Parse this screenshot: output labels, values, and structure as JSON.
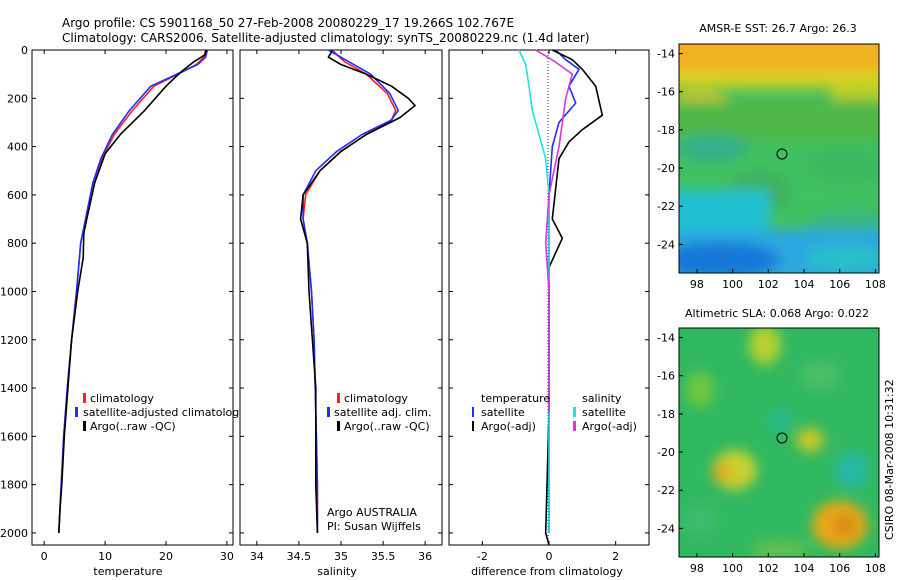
{
  "figure": {
    "title_line1": "Argo profile: CS 5901168_50 27-Feb-2008 20080229_17 19.266S 102.767E",
    "title_line2": "Climatology: CARS2006. Satellite-adjusted climatology: synTS_20080229.nc (1.4d later)",
    "side_note": "CSIRO 08-Mar-2008 10:31:32"
  },
  "colors": {
    "climatology": "#ff2020",
    "satellite": "#1f2fff",
    "argo": "#000000",
    "salinity_satellite": "#20e0e8",
    "salinity_argo": "#e030e0"
  },
  "chart_data": [
    {
      "type": "line",
      "xlabel": "temperature",
      "xticks": [
        0,
        10,
        20,
        30
      ],
      "xlim": [
        -2,
        31
      ],
      "ylim": [
        2050,
        0
      ],
      "yticks": [
        0,
        200,
        400,
        600,
        800,
        1000,
        1200,
        1400,
        1600,
        1800,
        2000
      ],
      "legend": [
        "climatology",
        "satellite-adjusted climatolog",
        "Argo(..raw -QC)"
      ],
      "series": [
        {
          "name": "climatology",
          "color": "#ff2020",
          "x": [
            26.5,
            26.2,
            25.0,
            22.0,
            18.0,
            14.5,
            11.5,
            9.5,
            8.0,
            6.8,
            6.0,
            5.3,
            4.5,
            3.8,
            3.2,
            2.8,
            2.4
          ],
          "y": [
            0,
            30,
            60,
            100,
            150,
            250,
            350,
            450,
            550,
            700,
            800,
            1000,
            1200,
            1400,
            1600,
            1800,
            2000
          ]
        },
        {
          "name": "satellite-adjusted climatolog",
          "color": "#1f2fff",
          "x": [
            26.8,
            26.5,
            25.2,
            21.8,
            17.5,
            14.0,
            11.2,
            9.3,
            8.0,
            6.8,
            6.0,
            5.3,
            4.5,
            3.8,
            3.2,
            2.8,
            2.4
          ],
          "y": [
            0,
            30,
            60,
            100,
            150,
            250,
            350,
            450,
            550,
            700,
            800,
            1000,
            1200,
            1400,
            1600,
            1800,
            2000
          ]
        },
        {
          "name": "Argo(..raw -QC)",
          "color": "#000000",
          "x": [
            26.6,
            26.4,
            24.5,
            22.5,
            20.0,
            16.5,
            12.5,
            10.0,
            8.3,
            7.0,
            6.5,
            6.4,
            5.5,
            4.5,
            3.9,
            3.3,
            2.9,
            2.6,
            2.4
          ],
          "y": [
            0,
            20,
            50,
            90,
            150,
            250,
            350,
            430,
            550,
            700,
            760,
            860,
            1000,
            1200,
            1400,
            1600,
            1800,
            1900,
            2000
          ]
        }
      ]
    },
    {
      "type": "line",
      "xlabel": "salinity",
      "xticks": [
        34,
        34.5,
        35,
        35.5,
        36
      ],
      "xlim": [
        33.8,
        36.2
      ],
      "ylim": [
        2050,
        0
      ],
      "legend": [
        "climatology",
        "satellite adj. clim.",
        "Argo(..raw -QC)"
      ],
      "annotation_lines": [
        "Argo AUSTRALIA",
        "PI: Susan Wijffels"
      ],
      "series": [
        {
          "name": "climatology",
          "color": "#ff2020",
          "x": [
            34.9,
            34.95,
            35.05,
            35.3,
            35.55,
            35.65,
            35.6,
            35.3,
            35.0,
            34.75,
            34.58,
            34.55,
            34.6,
            34.65,
            34.68,
            34.7,
            34.72,
            34.72
          ],
          "y": [
            0,
            20,
            50,
            100,
            180,
            250,
            290,
            350,
            420,
            500,
            600,
            700,
            800,
            1000,
            1200,
            1500,
            1800,
            2000
          ]
        },
        {
          "name": "satellite adj. clim.",
          "color": "#1f2fff",
          "x": [
            34.85,
            34.95,
            35.1,
            35.35,
            35.58,
            35.68,
            35.6,
            35.25,
            34.95,
            34.7,
            34.55,
            34.55,
            34.6,
            34.65,
            34.68,
            34.7,
            34.72,
            34.72
          ],
          "y": [
            0,
            20,
            50,
            100,
            180,
            250,
            290,
            350,
            420,
            500,
            600,
            700,
            800,
            1000,
            1200,
            1500,
            1800,
            2000
          ]
        },
        {
          "name": "Argo(..raw -QC)",
          "color": "#000000",
          "x": [
            34.9,
            34.85,
            35.0,
            35.3,
            35.6,
            35.8,
            35.88,
            35.7,
            35.3,
            35.0,
            34.75,
            34.55,
            34.52,
            34.6,
            34.62,
            34.7,
            34.7,
            34.72
          ],
          "y": [
            0,
            30,
            60,
            100,
            150,
            200,
            230,
            280,
            350,
            420,
            500,
            600,
            700,
            800,
            1000,
            1400,
            1800,
            2000
          ]
        }
      ]
    },
    {
      "type": "line",
      "xlabel": "difference from climatology",
      "xticks": [
        -2,
        0,
        2
      ],
      "xlim": [
        -3,
        3
      ],
      "ylim": [
        2050,
        0
      ],
      "legend": [
        "temperature",
        "satellite",
        "Argo(-adj)",
        "salinity",
        "satellite",
        "Argo(-adj)"
      ],
      "series": [
        {
          "name": "temperature satellite",
          "color": "#1f2fff",
          "x": [
            0.2,
            0.5,
            0.9,
            0.6,
            0.8,
            0.3,
            0.1,
            0.0,
            0.0,
            0.0,
            0.0
          ],
          "y": [
            0,
            40,
            80,
            150,
            220,
            300,
            400,
            600,
            1000,
            1500,
            2000
          ]
        },
        {
          "name": "temperature Argo(-adj)",
          "color": "#000000",
          "x": [
            0.1,
            0.7,
            1.0,
            1.4,
            1.6,
            1.0,
            0.6,
            0.3,
            0.1,
            0.4,
            0.0,
            0.0,
            -0.1,
            0.0
          ],
          "y": [
            0,
            40,
            80,
            150,
            270,
            330,
            380,
            450,
            700,
            780,
            900,
            1500,
            2000,
            2050
          ]
        },
        {
          "name": "salinity satellite",
          "color": "#20e0e8",
          "x": [
            -0.9,
            -0.7,
            -0.6,
            -0.5,
            -0.3,
            -0.1,
            0.0,
            0.0,
            0.0
          ],
          "y": [
            0,
            60,
            150,
            250,
            350,
            450,
            600,
            1000,
            2000
          ]
        },
        {
          "name": "salinity Argo(-adj)",
          "color": "#e030e0",
          "x": [
            -0.4,
            0.2,
            0.7,
            0.5,
            0.3,
            0.0,
            -0.1,
            0.0,
            0.0
          ],
          "y": [
            0,
            50,
            100,
            200,
            400,
            600,
            800,
            1000,
            1500
          ]
        }
      ]
    },
    {
      "type": "heatmap",
      "title": "AMSR-E SST: 26.7 Argo: 26.3",
      "xticks": [
        98,
        100,
        102,
        104,
        106,
        108
      ],
      "yticks": [
        -14,
        -16,
        -18,
        -20,
        -22,
        -24
      ],
      "xlim": [
        97,
        108.2
      ],
      "ylim": [
        -25.5,
        -13.5
      ],
      "marker": {
        "lon": 102.767,
        "lat": -19.266
      }
    },
    {
      "type": "heatmap",
      "title": "Altimetric SLA: 0.068 Argo: 0.022",
      "xticks": [
        98,
        100,
        102,
        104,
        106,
        108
      ],
      "yticks": [
        -14,
        -16,
        -18,
        -20,
        -22,
        -24
      ],
      "xlim": [
        97,
        108.2
      ],
      "ylim": [
        -25.5,
        -13.5
      ],
      "marker": {
        "lon": 102.767,
        "lat": -19.266
      }
    }
  ]
}
